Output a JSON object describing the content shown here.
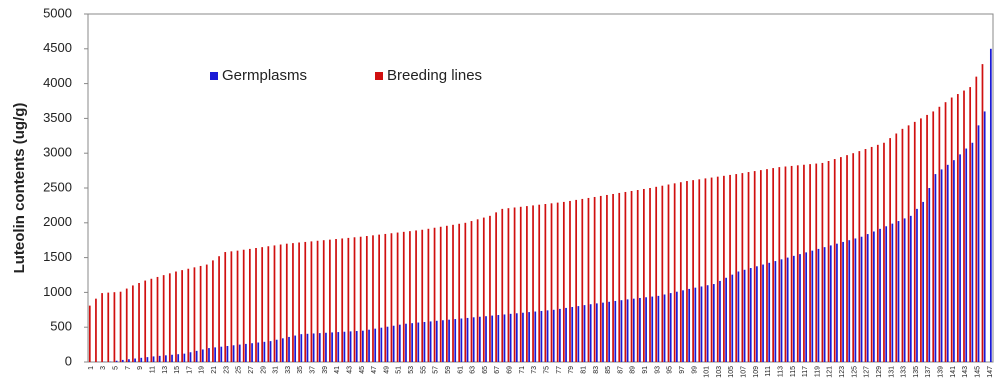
{
  "chart_data": {
    "type": "bar",
    "y_label": "Luteolin contents (ug/g)",
    "ylim": [
      0,
      5000
    ],
    "yticks": [
      0,
      500,
      1000,
      1500,
      2000,
      2500,
      3000,
      3500,
      4000,
      4500,
      5000
    ],
    "categories": [
      "1",
      null,
      "3",
      null,
      "5",
      null,
      "7",
      null,
      "9",
      null,
      "11",
      null,
      "13",
      null,
      "15",
      null,
      "17",
      null,
      "19",
      null,
      "21",
      null,
      "23",
      null,
      "25",
      null,
      "27",
      null,
      "29",
      null,
      "31",
      null,
      "33",
      null,
      "35",
      null,
      "37",
      null,
      "39",
      null,
      "41",
      null,
      "43",
      null,
      "45",
      null,
      "47",
      null,
      "49",
      null,
      "51",
      null,
      "53",
      null,
      "55",
      null,
      "57",
      null,
      "59",
      null,
      "61",
      null,
      "63",
      null,
      "65",
      null,
      "67",
      null,
      "69",
      null,
      "71",
      null,
      "73",
      null,
      "75",
      null,
      "77",
      null,
      "79",
      null,
      "81",
      null,
      "83",
      null,
      "85",
      null,
      "87",
      null,
      "89",
      null,
      "91",
      null,
      "93",
      null,
      "95",
      null,
      "97",
      null,
      "99",
      null,
      "101",
      null,
      "103",
      null,
      "105",
      null,
      "107",
      null,
      "109",
      null,
      "111",
      null,
      "113",
      null,
      "115",
      null,
      "117",
      null,
      "119",
      null,
      "121",
      null,
      "123",
      null,
      "125",
      null,
      "127",
      null,
      "129",
      null,
      "131",
      null,
      "133",
      null,
      "135",
      null,
      "137",
      null,
      "139",
      null,
      "141",
      null,
      "143",
      null,
      "145",
      null,
      "147"
    ],
    "series": [
      {
        "name": "Germplasms",
        "color": "#1a1ad6",
        "values": [
          0,
          2,
          3,
          5,
          18,
          30,
          40,
          50,
          60,
          70,
          80,
          88,
          96,
          104,
          112,
          120,
          140,
          160,
          180,
          200,
          210,
          220,
          230,
          240,
          250,
          260,
          270,
          280,
          290,
          300,
          320,
          340,
          360,
          380,
          400,
          405,
          410,
          415,
          420,
          425,
          430,
          435,
          440,
          445,
          450,
          464,
          479,
          493,
          507,
          521,
          536,
          550,
          558,
          567,
          575,
          583,
          592,
          600,
          608,
          617,
          625,
          633,
          642,
          650,
          658,
          667,
          675,
          683,
          692,
          700,
          708,
          717,
          725,
          733,
          742,
          750,
          763,
          777,
          790,
          803,
          817,
          830,
          842,
          853,
          865,
          877,
          888,
          900,
          910,
          920,
          930,
          940,
          950,
          970,
          990,
          1010,
          1030,
          1050,
          1068,
          1085,
          1103,
          1120,
          1165,
          1210,
          1255,
          1300,
          1325,
          1350,
          1375,
          1400,
          1425,
          1450,
          1475,
          1500,
          1525,
          1550,
          1575,
          1600,
          1625,
          1650,
          1675,
          1700,
          1725,
          1750,
          1775,
          1800,
          1838,
          1875,
          1913,
          1950,
          1988,
          2025,
          2063,
          2100,
          2200,
          2300,
          2500,
          2700,
          2767,
          2833,
          2900,
          2983,
          3067,
          3150,
          3400,
          3600,
          4500
        ]
      },
      {
        "name": "Breeding lines",
        "color": "#d01010",
        "values": [
          810,
          910,
          990,
          997,
          1003,
          1010,
          1055,
          1100,
          1135,
          1170,
          1196,
          1222,
          1248,
          1274,
          1300,
          1320,
          1340,
          1360,
          1380,
          1400,
          1460,
          1520,
          1580,
          1590,
          1600,
          1613,
          1625,
          1638,
          1650,
          1663,
          1675,
          1688,
          1700,
          1708,
          1717,
          1725,
          1733,
          1742,
          1750,
          1758,
          1767,
          1775,
          1783,
          1792,
          1800,
          1810,
          1820,
          1830,
          1840,
          1850,
          1860,
          1870,
          1880,
          1890,
          1900,
          1914,
          1929,
          1943,
          1957,
          1971,
          1986,
          2000,
          2025,
          2050,
          2075,
          2100,
          2150,
          2200,
          2210,
          2220,
          2230,
          2240,
          2250,
          2260,
          2270,
          2280,
          2290,
          2300,
          2314,
          2329,
          2343,
          2357,
          2371,
          2386,
          2400,
          2414,
          2429,
          2443,
          2457,
          2471,
          2486,
          2500,
          2517,
          2533,
          2550,
          2567,
          2583,
          2600,
          2613,
          2625,
          2638,
          2650,
          2663,
          2675,
          2688,
          2700,
          2714,
          2729,
          2743,
          2757,
          2771,
          2786,
          2800,
          2809,
          2817,
          2826,
          2834,
          2843,
          2851,
          2860,
          2888,
          2916,
          2944,
          2972,
          3000,
          3030,
          3060,
          3090,
          3120,
          3150,
          3217,
          3283,
          3350,
          3400,
          3450,
          3500,
          3550,
          3600,
          3667,
          3733,
          3800,
          3850,
          3900,
          3950,
          4100,
          4280,
          null
        ]
      }
    ]
  }
}
